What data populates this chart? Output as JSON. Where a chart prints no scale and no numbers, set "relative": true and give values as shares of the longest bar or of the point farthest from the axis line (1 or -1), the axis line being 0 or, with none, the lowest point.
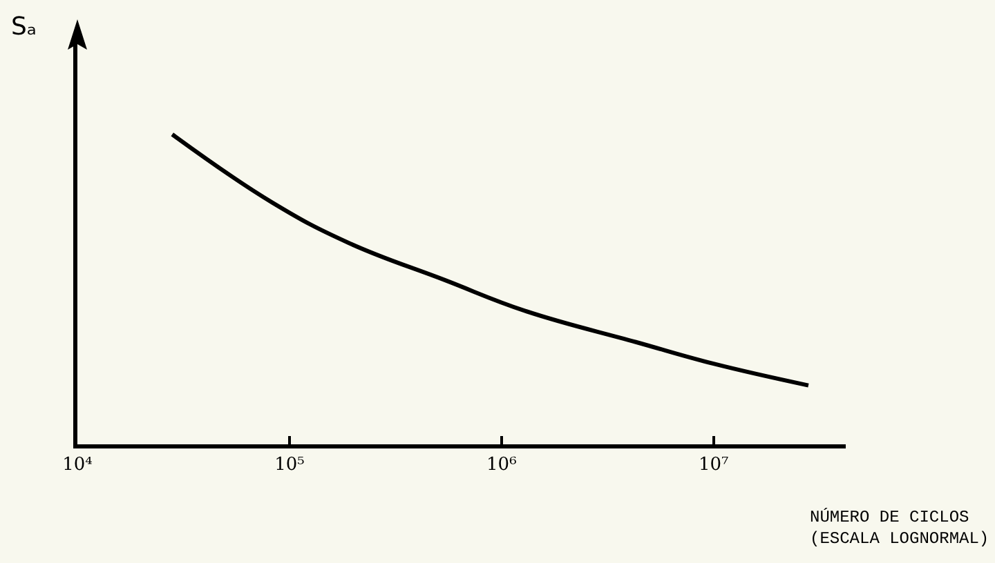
{
  "chart_data": {
    "type": "line",
    "relative": true,
    "log": "x",
    "xlabel": "NÚMERO DE CICLOS\n(ESCALA LOGNORMAL)",
    "ylabel": "Sₐ",
    "x": [
      28000,
      83000,
      190000,
      540000,
      1300000,
      4300000,
      10000000,
      28000000
    ],
    "series": [
      {
        "color": "#000000",
        "values": [
          1,
          0.78,
          0.65,
          0.53,
          0.43,
          0.33,
          0.26,
          0.19
        ]
      }
    ],
    "xlim": [
      10000,
      42000000
    ],
    "xticks": [
      {
        "value": 10000,
        "label": "10⁴"
      },
      {
        "value": 100000,
        "label": "10⁵"
      },
      {
        "value": 1000000,
        "label": "10⁶"
      },
      {
        "value": 10000000,
        "label": "10⁷"
      }
    ],
    "grid": false,
    "marker": "none",
    "line_style": "solid"
  }
}
